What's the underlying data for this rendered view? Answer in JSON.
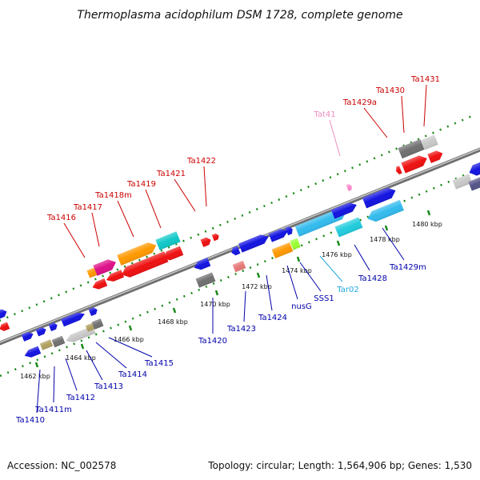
{
  "title": "Thermoplasma acidophilum DSM 1728, complete genome",
  "footer": {
    "accession": "Accession: NC_002578",
    "topology": "Topology: circular; Length: 1,564,906 bp; Genes: 1,530"
  },
  "colors": {
    "upper_labels": "#cc0000",
    "lower_labels": "#0000aa",
    "rna_label_pink": "#f08cc0",
    "rna_label_cyan": "#22aadd",
    "tick_green": "#1a8a1a",
    "backbone": "#8c8c8c"
  },
  "kbp_ticks": [
    "1462 kbp",
    "1464 kbp",
    "1466 kbp",
    "1468 kbp",
    "1470 kbp",
    "1472 kbp",
    "1474 kbp",
    "1476 kbp",
    "1478 kbp",
    "1480 kbp"
  ],
  "upper_gene_labels": [
    "Ta1416",
    "Ta1417",
    "Ta1418m",
    "Ta1419",
    "Ta1421",
    "Ta1422",
    "Tat41",
    "Ta1429a",
    "Ta1430",
    "Ta1431"
  ],
  "lower_gene_labels": [
    "Ta1410",
    "Ta1411m",
    "Ta1412",
    "Ta1413",
    "Ta1414",
    "Ta1415",
    "Ta1420",
    "Ta1423",
    "Ta1424",
    "nusG",
    "SSS1",
    "Tar02",
    "Ta1428",
    "Ta1429m"
  ]
}
